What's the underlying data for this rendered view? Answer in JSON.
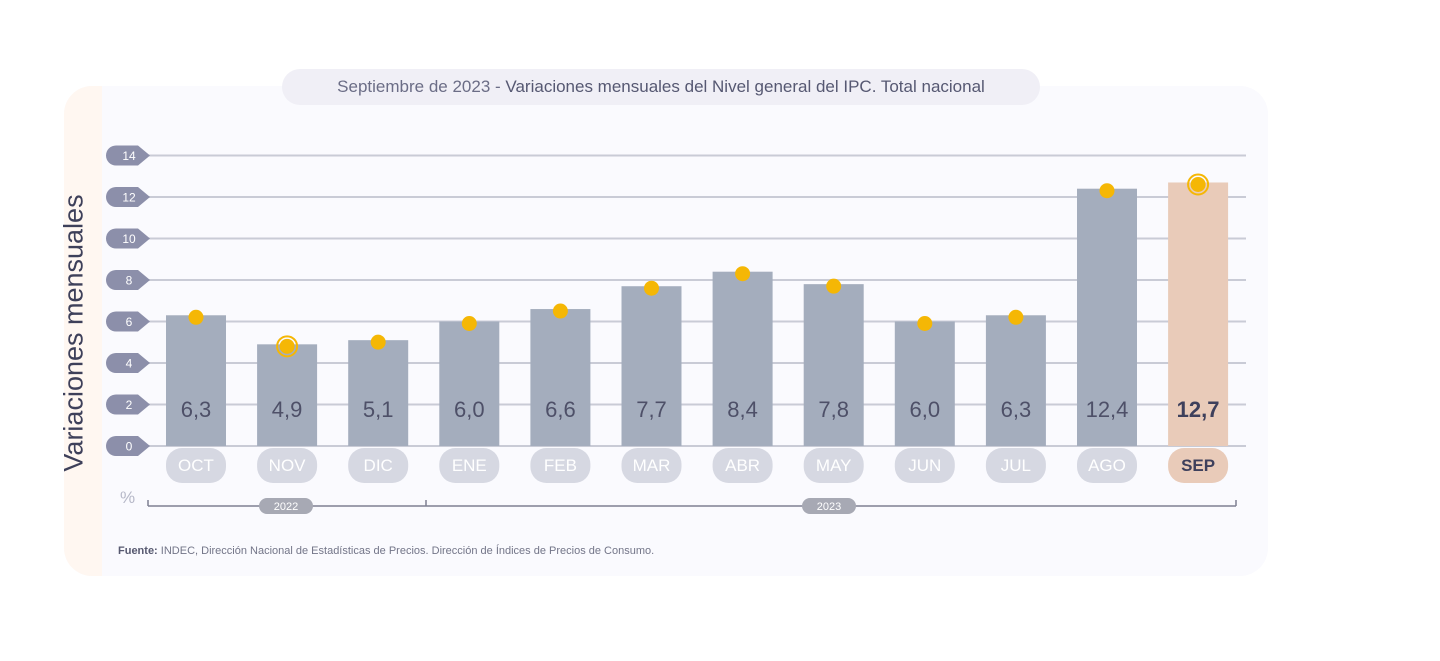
{
  "title": {
    "prefix": "Septiembre de 2023",
    "separator": " - ",
    "main": "Variaciones mensuales del Nivel general del IPC. Total nacional"
  },
  "ylabel": "Variaciones mensuales",
  "unit": "%",
  "source": {
    "label": "Fuente:",
    "text": " INDEC, Dirección Nacional de Estadísticas de Precios. Dirección de Índices de Precios de Consumo."
  },
  "colors": {
    "bar": "#a4adbd",
    "bar_highlight": "#e9cbb9",
    "marker": "#f5b705",
    "grid": "#c9cbd6",
    "tick_circle": "#8c8faa",
    "month_pill": "#d6d8e2",
    "month_pill_highlight": "#e9cbb9",
    "value_text": "#4e5068",
    "value_text_highlight": "#3e405c",
    "month_text": "#ffffff",
    "month_text_highlight": "#3e405c",
    "year_pill": "#a7a9b4"
  },
  "chart_data": {
    "type": "bar",
    "ylabel": "Variaciones mensuales",
    "unit": "%",
    "ylim": [
      0,
      14
    ],
    "yticks": [
      0,
      2,
      4,
      6,
      8,
      10,
      12,
      14
    ],
    "grid": true,
    "categories": [
      "OCT",
      "NOV",
      "DIC",
      "ENE",
      "FEB",
      "MAR",
      "ABR",
      "MAY",
      "JUN",
      "JUL",
      "AGO",
      "SEP"
    ],
    "values": [
      6.3,
      4.9,
      5.1,
      6.0,
      6.6,
      7.7,
      8.4,
      7.8,
      6.0,
      6.3,
      12.4,
      12.7
    ],
    "value_labels": [
      "6,3",
      "4,9",
      "5,1",
      "6,0",
      "6,6",
      "7,7",
      "8,4",
      "7,8",
      "6,0",
      "6,3",
      "12,4",
      "12,7"
    ],
    "highlight_index": 11,
    "ring_markers": [
      1,
      11
    ],
    "year_groups": [
      {
        "label": "2022",
        "start": 0,
        "end": 2
      },
      {
        "label": "2023",
        "start": 3,
        "end": 11
      }
    ]
  }
}
